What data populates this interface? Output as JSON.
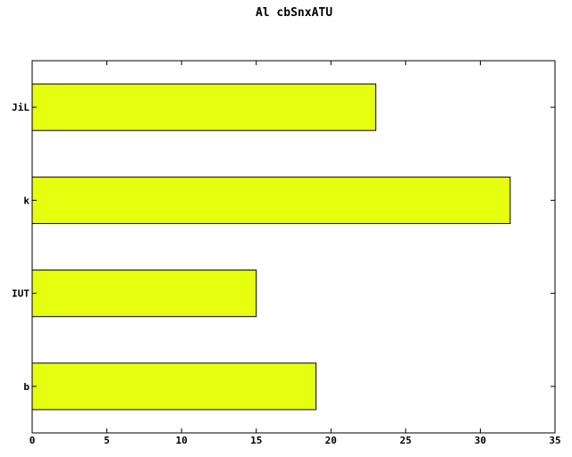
{
  "chart_data": {
    "type": "bar",
    "orientation": "horizontal",
    "title": "Al cbSnxATU",
    "xlabel": "",
    "ylabel": "",
    "categories": [
      "b",
      "IUT",
      "k",
      "JiL"
    ],
    "values": [
      19,
      15,
      32,
      23
    ],
    "xlim": [
      0,
      35
    ],
    "xticks": [
      0,
      5,
      10,
      15,
      20,
      25,
      30,
      35
    ],
    "grid": false,
    "legend": "none",
    "bar_color": "#e6ff0f"
  }
}
